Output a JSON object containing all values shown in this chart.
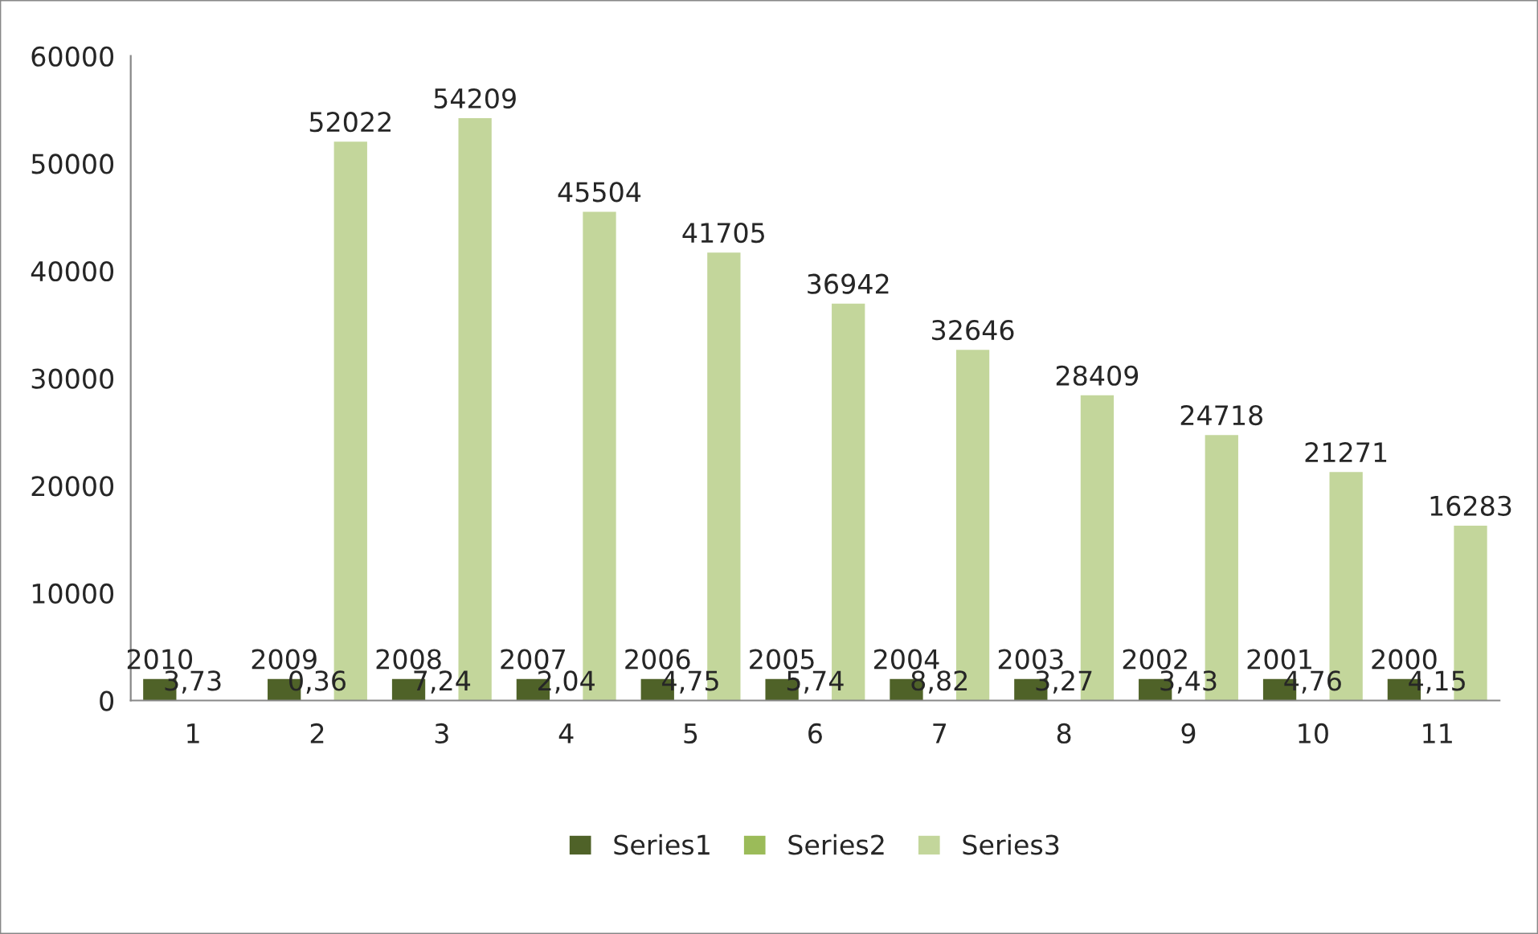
{
  "chart_data": {
    "type": "bar",
    "categories": [
      "1",
      "2",
      "3",
      "4",
      "5",
      "6",
      "7",
      "8",
      "9",
      "10",
      "11"
    ],
    "series": [
      {
        "name": "Series1",
        "color": "#4f6228",
        "values": [
          2010,
          2009,
          2008,
          2007,
          2006,
          2005,
          2004,
          2003,
          2002,
          2001,
          2000
        ],
        "value_labels": [
          "2010",
          "2009",
          "2008",
          "2007",
          "2006",
          "2005",
          "2004",
          "2003",
          "2002",
          "2001",
          "2000"
        ]
      },
      {
        "name": "Series2",
        "color": "#9bbb59",
        "values": [
          3.73,
          0.36,
          7.24,
          2.04,
          4.75,
          5.74,
          8.82,
          3.27,
          3.43,
          4.76,
          4.15
        ],
        "value_labels": [
          "3,73",
          "0,36",
          "7,24",
          "2,04",
          "4,75",
          "5,74",
          "8,82",
          "3,27",
          "3,43",
          "4,76",
          "4,15"
        ]
      },
      {
        "name": "Series3",
        "color": "#c3d69b",
        "values": [
          null,
          52022,
          54209,
          45504,
          41705,
          36942,
          32646,
          28409,
          24718,
          21271,
          16283
        ],
        "value_labels": [
          null,
          "52022",
          "54209",
          "45504",
          "41705",
          "36942",
          "32646",
          "28409",
          "24718",
          "21271",
          "16283"
        ]
      }
    ],
    "ylim": [
      0,
      60000
    ],
    "yticks": [
      0,
      10000,
      20000,
      30000,
      40000,
      50000,
      60000
    ],
    "grid": false,
    "legend": "bottom"
  }
}
